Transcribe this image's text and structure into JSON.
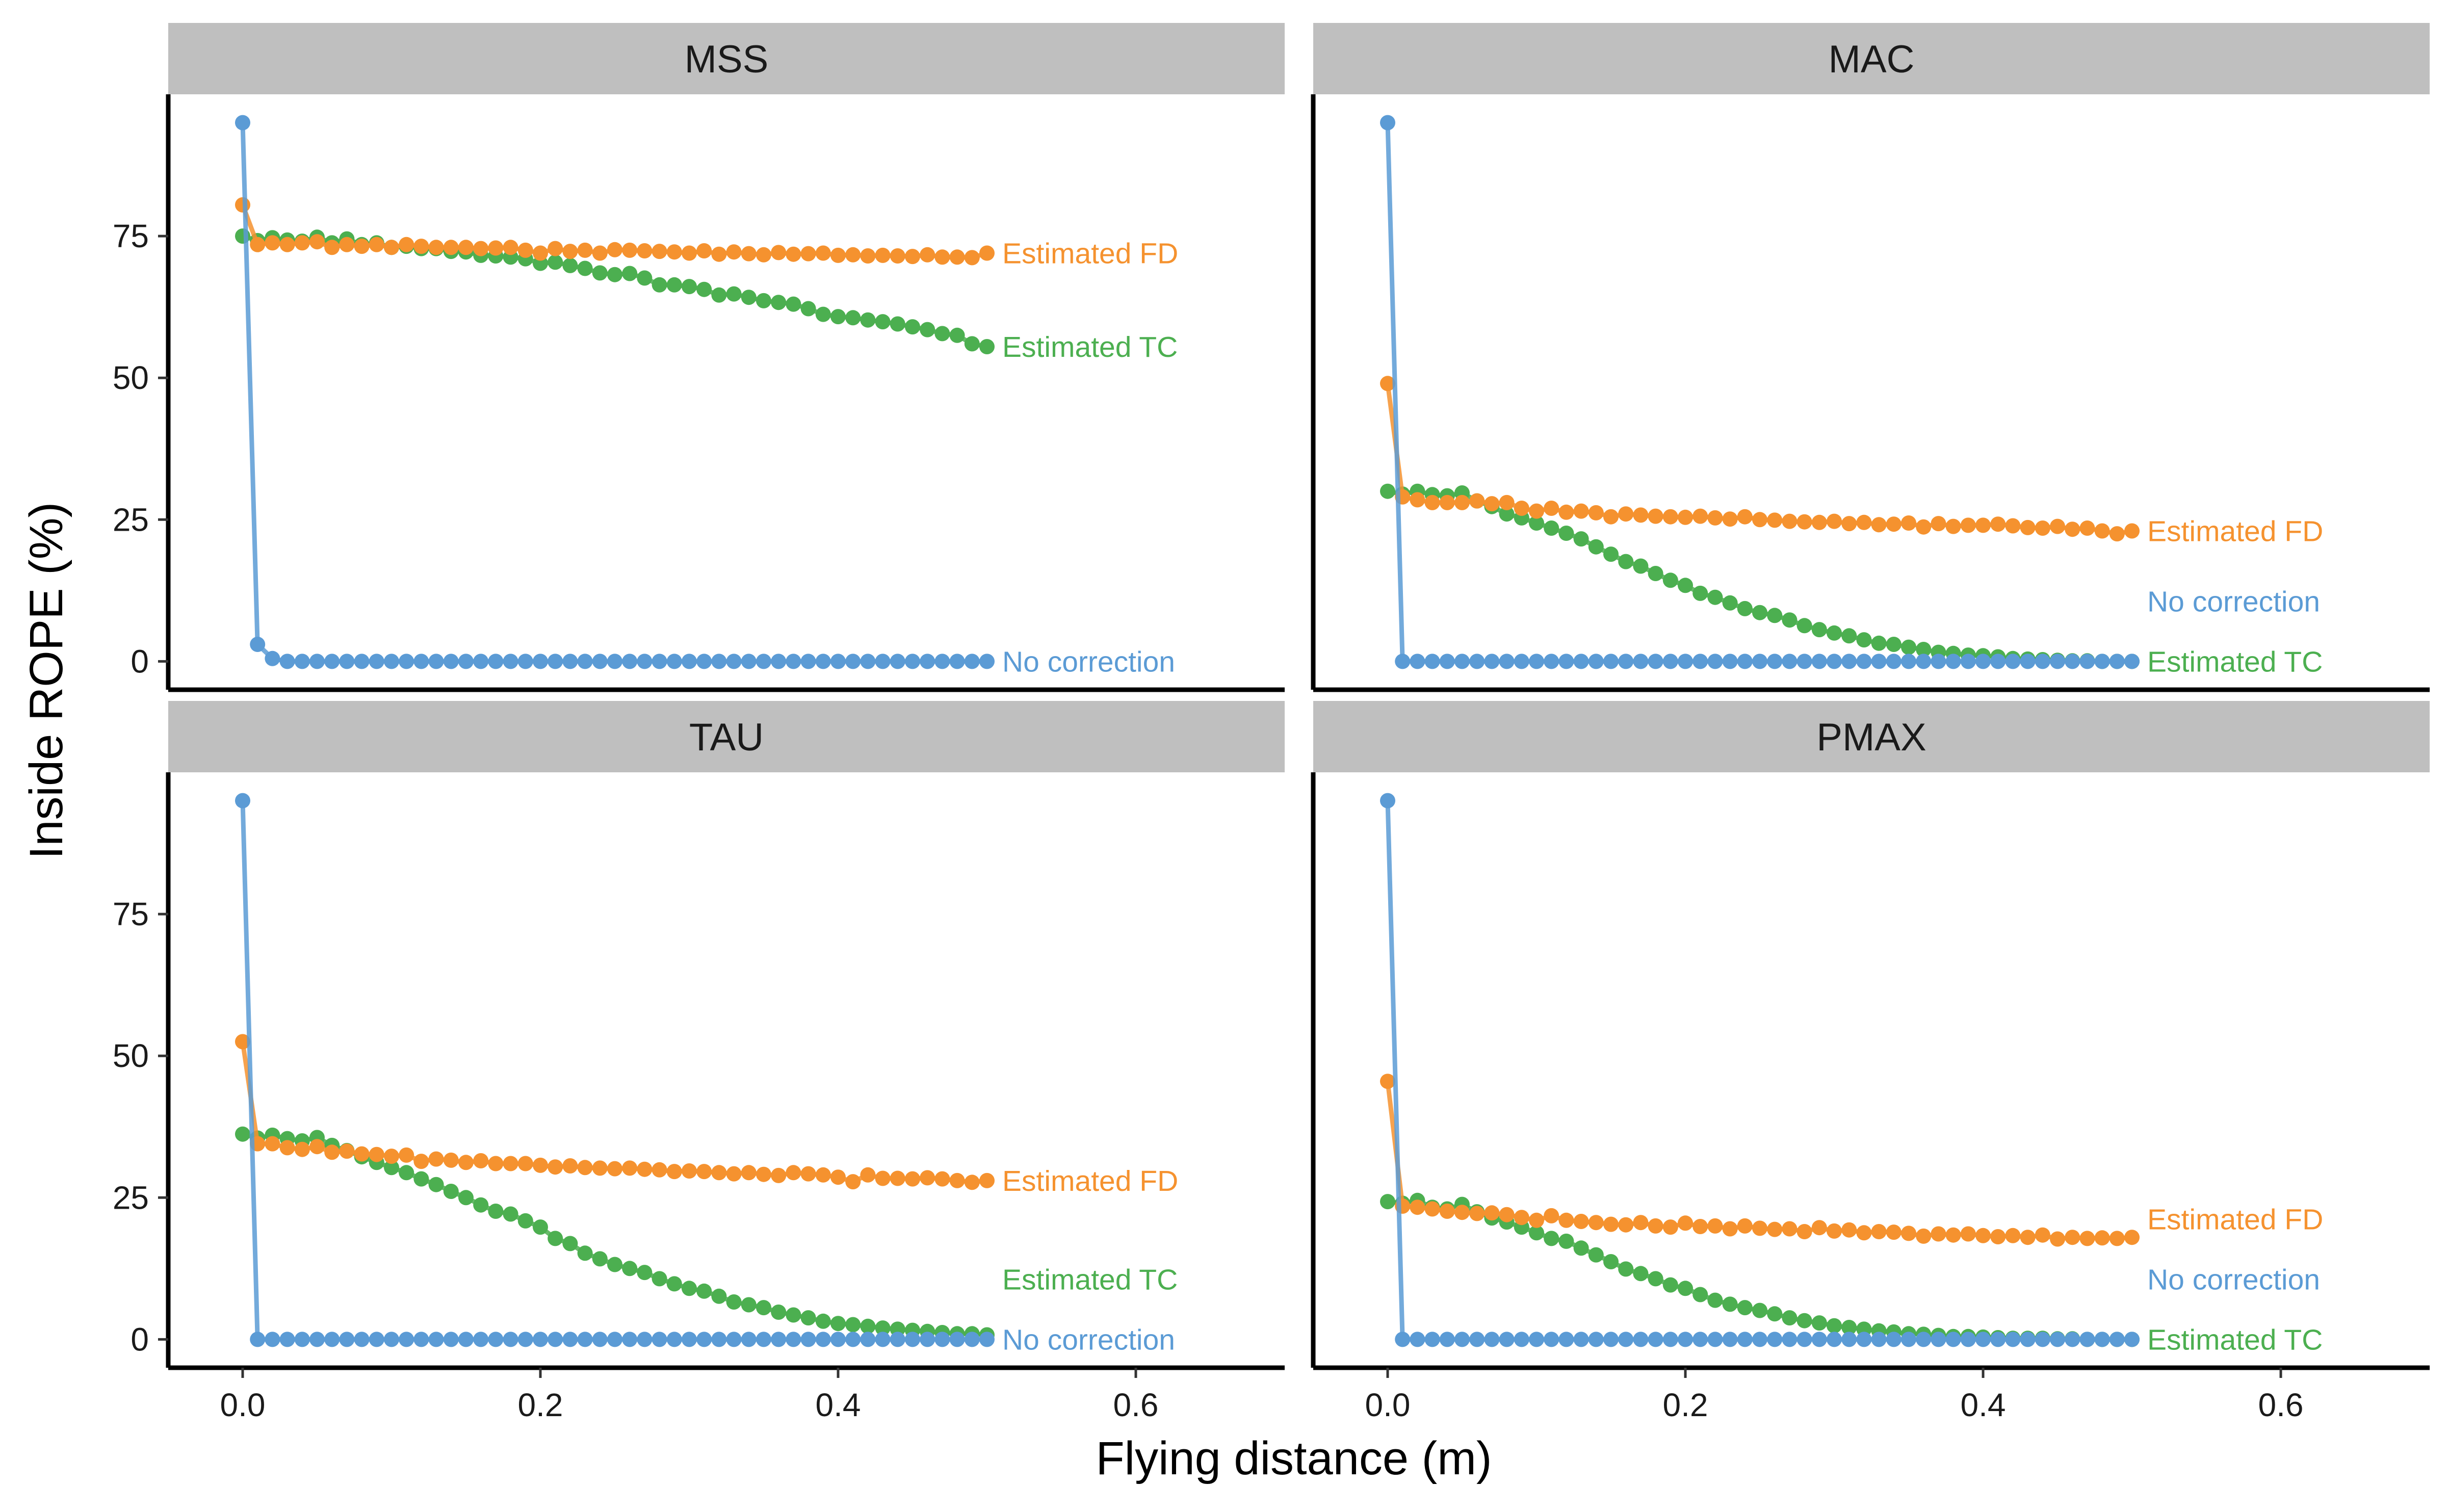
{
  "chart_data": {
    "type": "line",
    "xlabel": "Flying distance (m)",
    "ylabel": "Inside ROPE (%)",
    "xlim": [
      -0.05,
      0.7
    ],
    "ylim": [
      -5,
      100
    ],
    "x_ticks": [
      0.0,
      0.2,
      0.4,
      0.6
    ],
    "x_tick_labels": [
      "0.0",
      "0.2",
      "0.4",
      "0.6"
    ],
    "y_ticks": [
      0,
      25,
      50,
      75
    ],
    "y_tick_labels": [
      "0",
      "25",
      "50",
      "75"
    ],
    "x": [
      0,
      0.01,
      0.02,
      0.03,
      0.04,
      0.05,
      0.06,
      0.07,
      0.08,
      0.09,
      0.1,
      0.11,
      0.12,
      0.13,
      0.14,
      0.15,
      0.16,
      0.17,
      0.18,
      0.19,
      0.2,
      0.21,
      0.22,
      0.23,
      0.24,
      0.25,
      0.26,
      0.27,
      0.28,
      0.29,
      0.3,
      0.31,
      0.32,
      0.33,
      0.34,
      0.35,
      0.36,
      0.37,
      0.38,
      0.39,
      0.4,
      0.41,
      0.42,
      0.43,
      0.44,
      0.45,
      0.46,
      0.47,
      0.48,
      0.49,
      0.5
    ],
    "grid": false,
    "legend": "direct-labels",
    "colors": {
      "No correction": "#5b9bd5",
      "Estimated FD": "#f5922f",
      "Estimated TC": "#4caf50"
    },
    "series_order": [
      "Estimated TC",
      "Estimated FD",
      "No correction"
    ],
    "panels": [
      {
        "title": "MSS",
        "series": [
          {
            "name": "No correction",
            "values": [
              95,
              3,
              0.5,
              0,
              0,
              0,
              0,
              0,
              0,
              0,
              0,
              0,
              0,
              0,
              0,
              0,
              0,
              0,
              0,
              0,
              0,
              0,
              0,
              0,
              0,
              0,
              0,
              0,
              0,
              0,
              0,
              0,
              0,
              0,
              0,
              0,
              0,
              0,
              0,
              0,
              0,
              0,
              0,
              0,
              0,
              0,
              0,
              0,
              0,
              0,
              0
            ]
          },
          {
            "name": "Estimated FD",
            "values": [
              80.5,
              73.5,
              73.8,
              73.5,
              73.8,
              74,
              73,
              73.5,
              73.2,
              73.5,
              73,
              73.5,
              73.2,
              73,
              73,
              73,
              72.8,
              72.9,
              73,
              72.5,
              72,
              72.8,
              72.3,
              72.5,
              72,
              72.6,
              72.5,
              72.4,
              72.3,
              72.2,
              72,
              72.4,
              71.8,
              72.2,
              71.9,
              71.7,
              72.1,
              71.8,
              71.9,
              72,
              71.6,
              71.7,
              71.5,
              71.6,
              71.5,
              71.4,
              71.7,
              71.3,
              71.3,
              71.2,
              72
            ]
          },
          {
            "name": "Estimated TC",
            "values": [
              75,
              74.2,
              74.7,
              74.3,
              74.1,
              74.8,
              73.8,
              74.5,
              73.5,
              73.8,
              73,
              73.2,
              72.8,
              72.8,
              72.3,
              72.2,
              71.6,
              71.5,
              71.3,
              71,
              70.2,
              70.4,
              69.8,
              69.3,
              68.5,
              68.2,
              68.4,
              67.6,
              66.4,
              66.4,
              66.1,
              65.6,
              64.6,
              64.8,
              64.2,
              63.6,
              63.3,
              63,
              62.2,
              61.2,
              60.8,
              60.6,
              60.2,
              59.9,
              59.5,
              59,
              58.5,
              57.8,
              57.5,
              56,
              55.5
            ]
          }
        ],
        "labels": [
          {
            "series": "Estimated FD",
            "text": "Estimated FD"
          },
          {
            "series": "Estimated TC",
            "text": "Estimated TC"
          },
          {
            "series": "No correction",
            "text": "No correction"
          }
        ]
      },
      {
        "title": "MAC",
        "series": [
          {
            "name": "No correction",
            "values": [
              95,
              0,
              0,
              0,
              0,
              0,
              0,
              0,
              0,
              0,
              0,
              0,
              0,
              0,
              0,
              0,
              0,
              0,
              0,
              0,
              0,
              0,
              0,
              0,
              0,
              0,
              0,
              0,
              0,
              0,
              0,
              0,
              0,
              0,
              0,
              0,
              0,
              0,
              0,
              0,
              0,
              0,
              0,
              0,
              0,
              0,
              0,
              0,
              0,
              0,
              0
            ]
          },
          {
            "name": "Estimated FD",
            "values": [
              49,
              29,
              28.5,
              28,
              28,
              28,
              28.3,
              27.8,
              28,
              27,
              26.5,
              27,
              26.3,
              26.5,
              26.2,
              25.5,
              26,
              25.8,
              25.6,
              25.5,
              25.4,
              25.6,
              25.3,
              25.1,
              25.5,
              25,
              24.9,
              24.7,
              24.6,
              24.5,
              24.7,
              24.3,
              24.5,
              24.1,
              24.2,
              24.4,
              23.7,
              24.3,
              23.8,
              24,
              24,
              24.2,
              23.9,
              23.6,
              23.5,
              23.8,
              23.3,
              23.5,
              23,
              22.5,
              23
            ]
          },
          {
            "name": "Estimated TC",
            "values": [
              30,
              29.5,
              30,
              29.4,
              29.2,
              29.7,
              28.3,
              27.3,
              26,
              25.3,
              24.4,
              23.5,
              22.6,
              21.6,
              20.2,
              18.9,
              17.6,
              16.8,
              15.5,
              14.3,
              13.4,
              12,
              11.3,
              10.3,
              9.3,
              8.6,
              8.1,
              7.3,
              6.3,
              5.6,
              5,
              4.5,
              3.8,
              3.2,
              3,
              2.5,
              2.1,
              1.6,
              1.4,
              1.1,
              1,
              0.8,
              0.5,
              0.4,
              0.3,
              0.2,
              0.1,
              0.1,
              0,
              0,
              0
            ]
          }
        ],
        "labels": [
          {
            "series": "Estimated FD",
            "text": "Estimated FD"
          },
          {
            "series": "Estimated TC",
            "text": "Estimated TC"
          },
          {
            "series": "No correction",
            "text": "No correction"
          }
        ]
      },
      {
        "title": "TAU",
        "series": [
          {
            "name": "No correction",
            "values": [
              95,
              0,
              0,
              0,
              0,
              0,
              0,
              0,
              0,
              0,
              0,
              0,
              0,
              0,
              0,
              0,
              0,
              0,
              0,
              0,
              0,
              0,
              0,
              0,
              0,
              0,
              0,
              0,
              0,
              0,
              0,
              0,
              0,
              0,
              0,
              0,
              0,
              0,
              0,
              0,
              0,
              0,
              0,
              0,
              0,
              0,
              0,
              0,
              0,
              0,
              0
            ]
          },
          {
            "name": "Estimated FD",
            "values": [
              52.5,
              34.5,
              34.5,
              33.8,
              33.5,
              34,
              33,
              33.2,
              32.7,
              32.6,
              32.3,
              32.5,
              31.4,
              31.8,
              31.6,
              31.2,
              31.5,
              31,
              31,
              31,
              30.7,
              30.4,
              30.6,
              30.3,
              30.2,
              30.1,
              30.2,
              30,
              29.9,
              29.6,
              29.7,
              29.6,
              29.4,
              29.2,
              29.4,
              29.1,
              28.9,
              29.4,
              29.2,
              29,
              28.6,
              27.8,
              29,
              28.4,
              28.4,
              28.3,
              28.5,
              28.3,
              28,
              27.7,
              28
            ]
          },
          {
            "name": "Estimated TC",
            "values": [
              36.2,
              35.5,
              36,
              35.4,
              35,
              35.6,
              34.2,
              33.3,
              32.2,
              31.2,
              30.3,
              29.4,
              28.3,
              27.3,
              26.1,
              25,
              23.7,
              22.6,
              22.1,
              20.9,
              19.8,
              17.8,
              16.9,
              15.2,
              14.2,
              13.2,
              12.5,
              11.8,
              10.7,
              9.8,
              9,
              8.5,
              7.6,
              6.6,
              6.1,
              5.6,
              4.8,
              4.3,
              3.8,
              3.2,
              2.8,
              2.6,
              2.3,
              2,
              1.8,
              1.6,
              1.4,
              1.2,
              1,
              1,
              0.8
            ]
          }
        ],
        "labels": [
          {
            "series": "Estimated FD",
            "text": "Estimated FD"
          },
          {
            "series": "Estimated TC",
            "text": "Estimated TC"
          },
          {
            "series": "No correction",
            "text": "No correction"
          }
        ]
      },
      {
        "title": "PMAX",
        "series": [
          {
            "name": "No correction",
            "values": [
              95,
              0,
              0,
              0,
              0,
              0,
              0,
              0,
              0,
              0,
              0,
              0,
              0,
              0,
              0,
              0,
              0,
              0,
              0,
              0,
              0,
              0,
              0,
              0,
              0,
              0,
              0,
              0,
              0,
              0,
              0,
              0,
              0,
              0,
              0,
              0,
              0,
              0,
              0,
              0,
              0,
              0,
              0,
              0,
              0,
              0,
              0,
              0,
              0,
              0,
              0
            ]
          },
          {
            "name": "Estimated FD",
            "values": [
              45.5,
              23.5,
              23.3,
              23,
              22.6,
              22.4,
              22.2,
              22.3,
              22,
              21.5,
              21,
              21.8,
              21,
              20.8,
              20.6,
              20.3,
              20.2,
              20.6,
              20,
              19.8,
              20.5,
              19.9,
              20,
              19.5,
              20,
              19.6,
              19.4,
              19.5,
              19,
              19.7,
              19.1,
              19.3,
              18.8,
              19,
              18.9,
              18.7,
              18.2,
              18.6,
              18.4,
              18.6,
              18.3,
              18.1,
              18.3,
              18,
              18.4,
              17.7,
              18,
              17.8,
              17.9,
              17.8,
              18
            ]
          },
          {
            "name": "Estimated TC",
            "values": [
              24.3,
              24,
              24.5,
              23.3,
              23,
              23.8,
              22.5,
              21.4,
              20.7,
              19.8,
              18.8,
              17.8,
              17.3,
              16.1,
              14.9,
              13.7,
              12.4,
              11.6,
              10.7,
              9.6,
              9,
              7.9,
              6.9,
              6.2,
              5.6,
              5.1,
              4.5,
              3.8,
              3.3,
              2.9,
              2.4,
              2.1,
              1.8,
              1.5,
              1.3,
              1,
              0.9,
              0.7,
              0.5,
              0.5,
              0.4,
              0.3,
              0.2,
              0.2,
              0.2,
              0.1,
              0.1,
              0,
              0,
              0,
              0
            ]
          }
        ],
        "labels": [
          {
            "series": "Estimated FD",
            "text": "Estimated FD"
          },
          {
            "series": "Estimated TC",
            "text": "Estimated TC"
          },
          {
            "series": "No correction",
            "text": "No correction"
          }
        ]
      }
    ]
  }
}
